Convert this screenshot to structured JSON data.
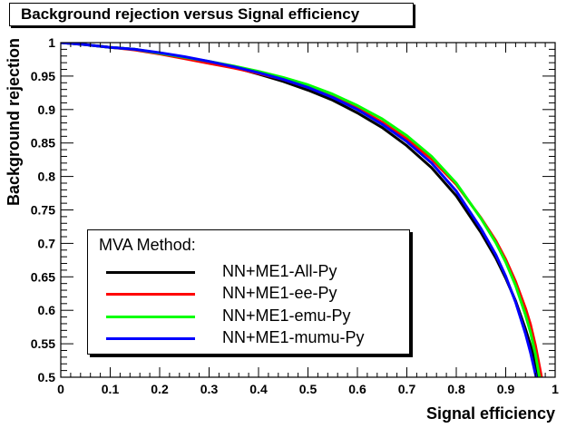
{
  "chart_data": {
    "type": "line",
    "title": "Background rejection versus Signal efficiency",
    "xlabel": "Signal efficiency",
    "ylabel": "Background rejection",
    "xlim": [
      0,
      1
    ],
    "ylim": [
      0.5,
      1
    ],
    "x_ticks": [
      "0",
      "0.1",
      "0.2",
      "0.3",
      "0.4",
      "0.5",
      "0.6",
      "0.7",
      "0.8",
      "0.9",
      "1"
    ],
    "y_ticks": [
      "0.5",
      "0.55",
      "0.6",
      "0.65",
      "0.7",
      "0.75",
      "0.8",
      "0.85",
      "0.9",
      "0.95",
      "1"
    ],
    "grid": false,
    "legend": {
      "title": "MVA Method:",
      "position": "bottom-left"
    },
    "series": [
      {
        "name": "NN+ME1-All-Py",
        "color": "#000000",
        "x": [
          0,
          0.05,
          0.1,
          0.15,
          0.2,
          0.25,
          0.3,
          0.35,
          0.4,
          0.45,
          0.5,
          0.55,
          0.6,
          0.65,
          0.7,
          0.75,
          0.8,
          0.85,
          0.88,
          0.9,
          0.92,
          0.94,
          0.95,
          0.96,
          0.97
        ],
        "y": [
          1.0,
          0.997,
          0.993,
          0.99,
          0.984,
          0.978,
          0.971,
          0.963,
          0.953,
          0.942,
          0.929,
          0.914,
          0.895,
          0.873,
          0.846,
          0.813,
          0.771,
          0.716,
          0.678,
          0.648,
          0.614,
          0.572,
          0.548,
          0.52,
          0.488
        ]
      },
      {
        "name": "NN+ME1-ee-Py",
        "color": "#ff0000",
        "x": [
          0,
          0.05,
          0.1,
          0.15,
          0.2,
          0.25,
          0.3,
          0.35,
          0.4,
          0.45,
          0.5,
          0.55,
          0.6,
          0.65,
          0.7,
          0.75,
          0.8,
          0.85,
          0.88,
          0.9,
          0.92,
          0.94,
          0.95,
          0.96,
          0.97,
          0.975
        ],
        "y": [
          1.0,
          0.997,
          0.993,
          0.989,
          0.983,
          0.976,
          0.969,
          0.962,
          0.954,
          0.945,
          0.933,
          0.919,
          0.902,
          0.881,
          0.856,
          0.826,
          0.788,
          0.738,
          0.704,
          0.676,
          0.643,
          0.603,
          0.579,
          0.548,
          0.51,
          0.49
        ]
      },
      {
        "name": "NN+ME1-emu-Py",
        "color": "#00ff00",
        "x": [
          0,
          0.05,
          0.1,
          0.15,
          0.2,
          0.25,
          0.3,
          0.35,
          0.4,
          0.45,
          0.5,
          0.55,
          0.6,
          0.65,
          0.7,
          0.75,
          0.8,
          0.85,
          0.88,
          0.9,
          0.92,
          0.94,
          0.95,
          0.96,
          0.97
        ],
        "y": [
          1.0,
          0.997,
          0.993,
          0.99,
          0.984,
          0.978,
          0.972,
          0.965,
          0.957,
          0.948,
          0.937,
          0.923,
          0.906,
          0.886,
          0.861,
          0.83,
          0.79,
          0.737,
          0.701,
          0.672,
          0.637,
          0.593,
          0.567,
          0.535,
          0.493
        ]
      },
      {
        "name": "NN+ME1-mumu-Py",
        "color": "#0000ff",
        "x": [
          0,
          0.05,
          0.1,
          0.15,
          0.2,
          0.25,
          0.3,
          0.35,
          0.4,
          0.45,
          0.5,
          0.55,
          0.6,
          0.65,
          0.7,
          0.75,
          0.8,
          0.85,
          0.88,
          0.9,
          0.92,
          0.94,
          0.95,
          0.96,
          0.965
        ],
        "y": [
          1.0,
          0.997,
          0.993,
          0.99,
          0.985,
          0.979,
          0.972,
          0.964,
          0.955,
          0.945,
          0.933,
          0.918,
          0.9,
          0.878,
          0.852,
          0.82,
          0.778,
          0.722,
          0.683,
          0.651,
          0.612,
          0.565,
          0.537,
          0.505,
          0.49
        ]
      }
    ]
  }
}
